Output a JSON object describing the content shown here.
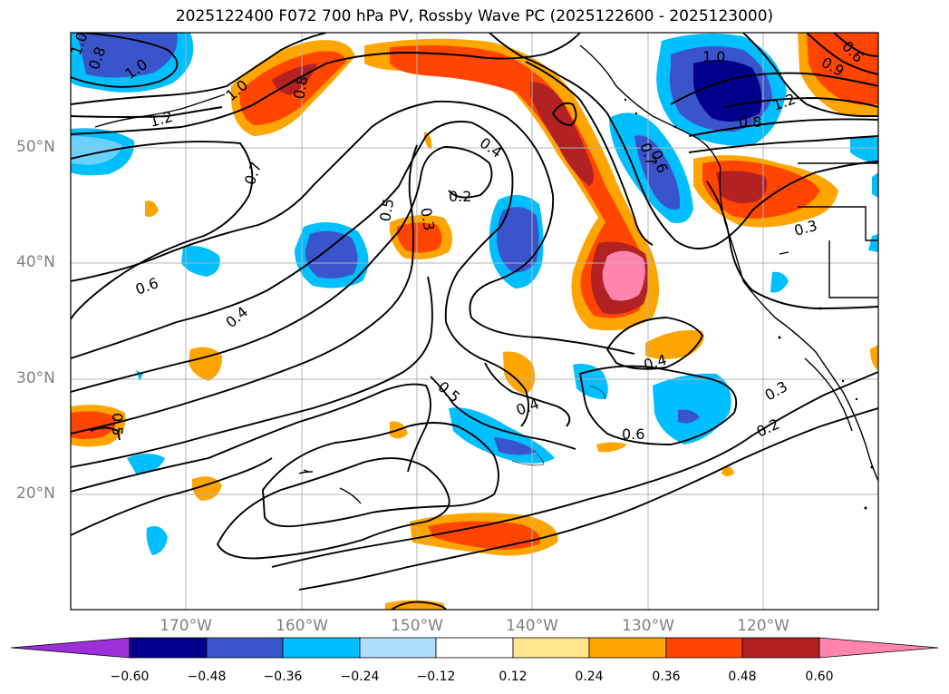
{
  "title": "2025122400 F072 700 hPa PV, Rossby Wave PC (2025122600 - 2025123000)",
  "latitude_labels": [
    "50°N",
    "40°N",
    "30°N",
    "20°N"
  ],
  "longitude_labels": [
    "170°W",
    "160°W",
    "150°W",
    "140°W",
    "130°W",
    "120°W"
  ],
  "contour_labels": [
    "1.0",
    "0.8",
    "1.0",
    "1.2",
    "0.8",
    "1.0",
    "0.7",
    "0.6",
    "0.4",
    "0.5",
    "0.3",
    "0.2",
    "0.4",
    "0.7",
    "0.6",
    "1.0",
    "0.8",
    "1.2",
    "0.3",
    "0.4",
    "0.5",
    "0.4",
    "0.6",
    "0.3",
    "0.2",
    "0.5",
    "0.9",
    "0.6"
  ],
  "colorbar": {
    "ticks": [
      "−0.60",
      "−0.48",
      "−0.36",
      "−0.24",
      "−0.12",
      "0.12",
      "0.24",
      "0.36",
      "0.48",
      "0.60"
    ],
    "colors": [
      "#9b30d9",
      "#00008b",
      "#3a55cc",
      "#00bfff",
      "#ade0fa",
      "#ffffff",
      "#ffe68c",
      "#ffa500",
      "#ff4500",
      "#b22222",
      "#ff85b0"
    ]
  }
}
